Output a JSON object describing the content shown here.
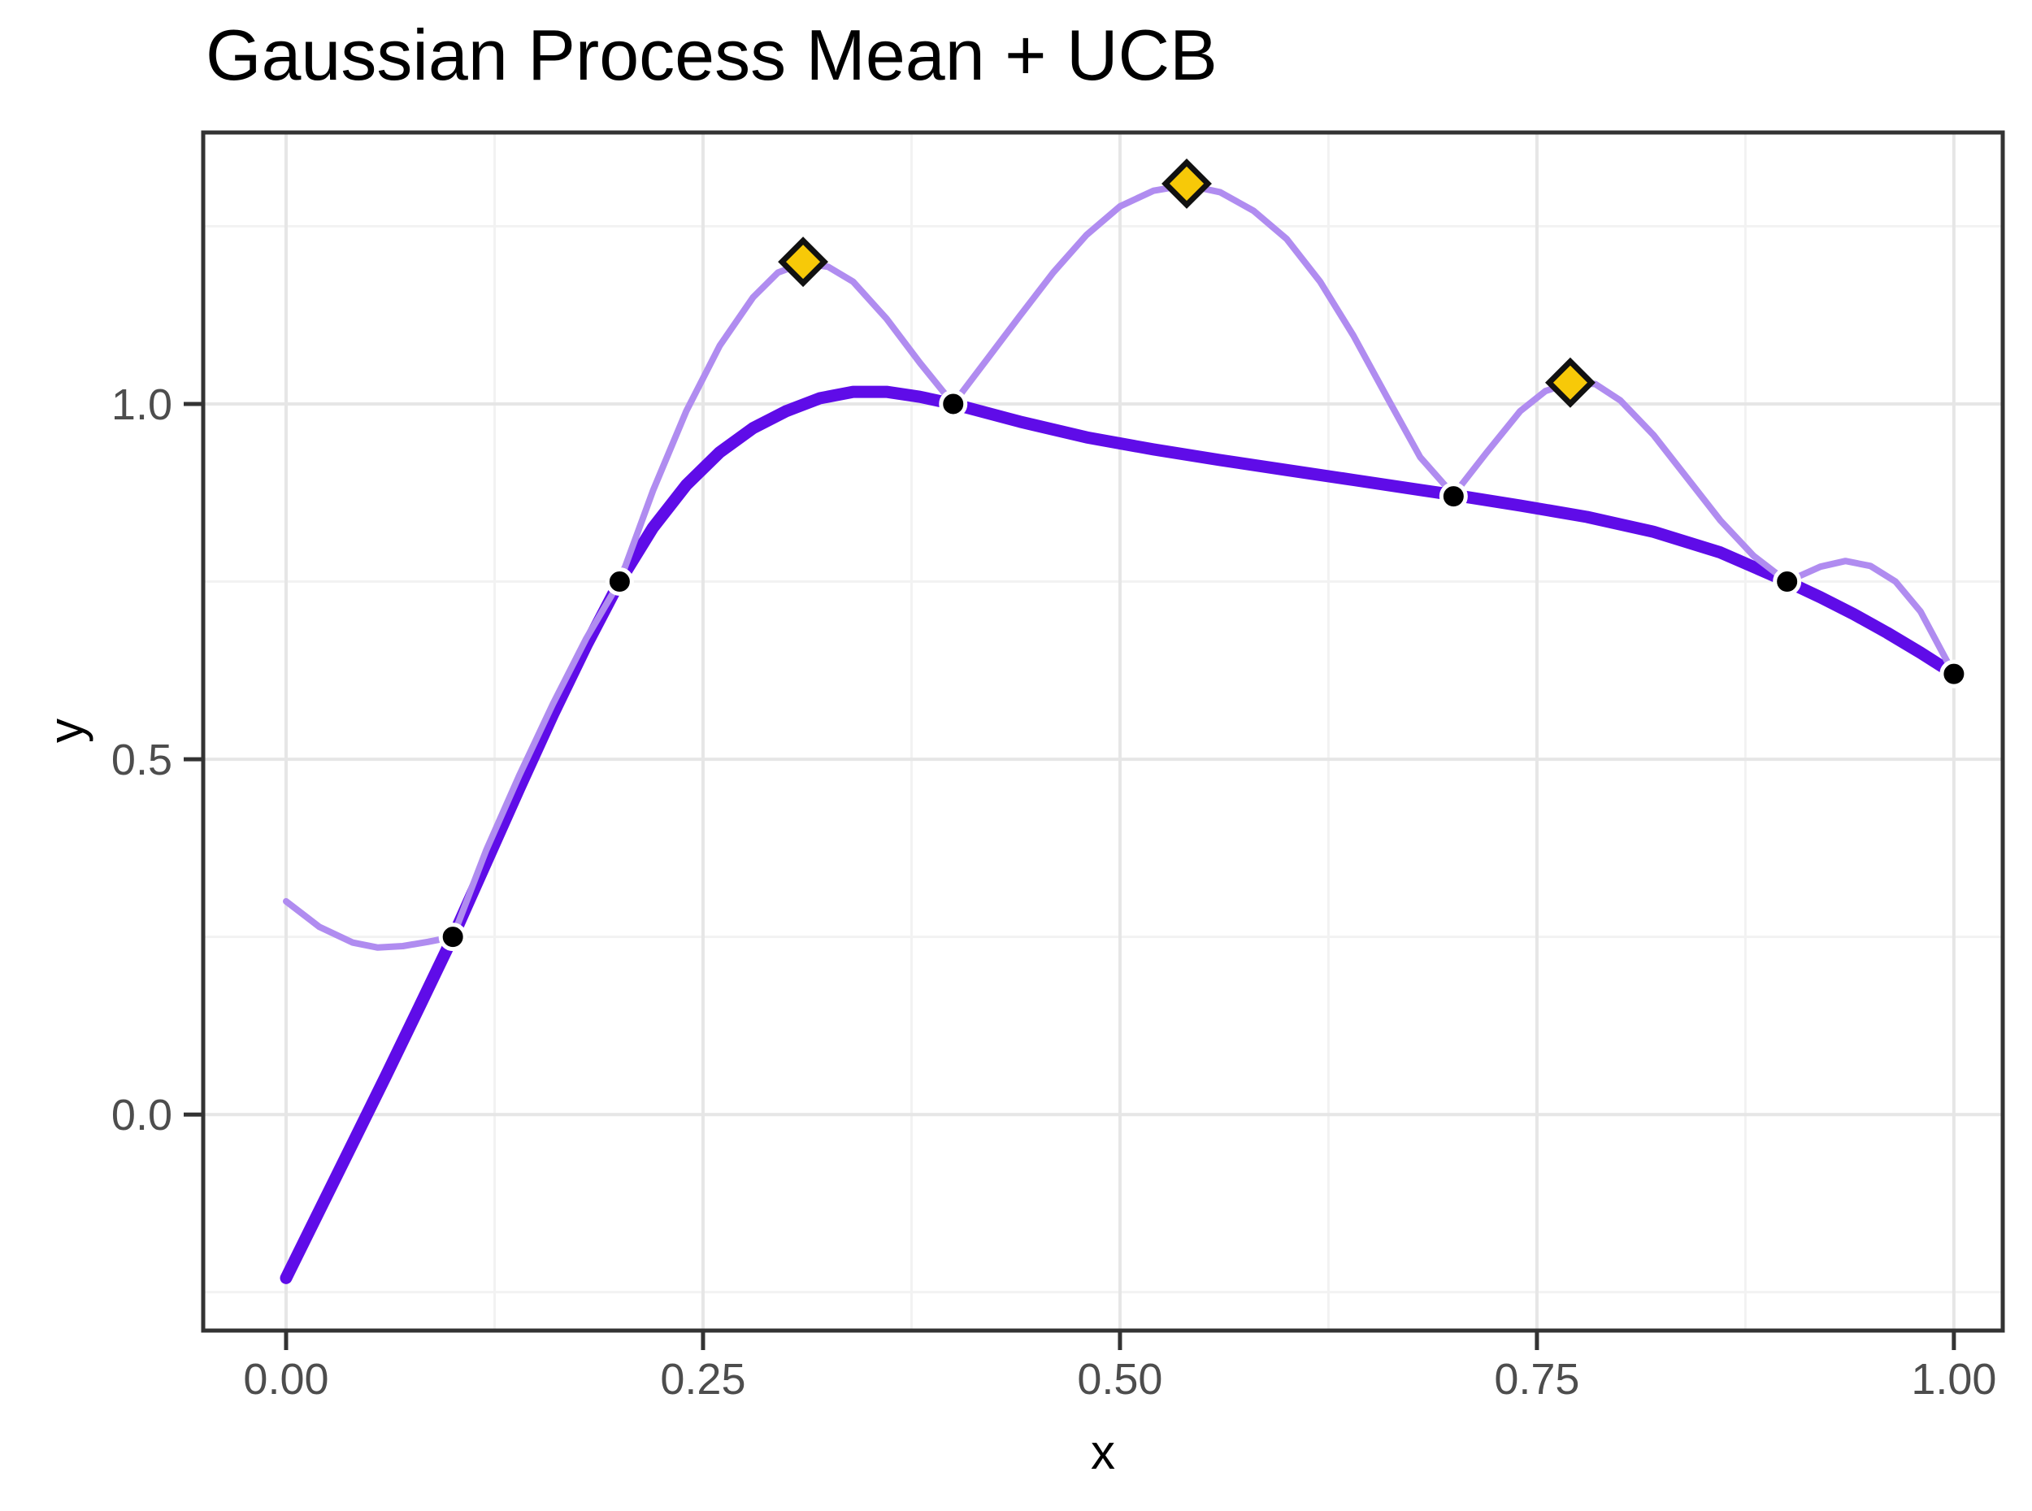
{
  "chart_data": {
    "type": "line",
    "title": "Gaussian Process Mean + UCB",
    "xlabel": "x",
    "ylabel": "y",
    "xlim": [
      -0.0497,
      1.0293
    ],
    "ylim": [
      -0.304,
      1.382
    ],
    "x_ticks": [
      0,
      0.25,
      0.5,
      0.75,
      1.0
    ],
    "x_tick_labels": [
      "0.00",
      "0.25",
      "0.50",
      "0.75",
      "1.00"
    ],
    "x_minor_ticks": [
      0.125,
      0.375,
      0.625,
      0.875
    ],
    "y_ticks": [
      0,
      0.5,
      1.0
    ],
    "y_tick_labels": [
      "0.0",
      "0.5",
      "1.0"
    ],
    "y_minor_ticks": [
      -0.25,
      0.25,
      0.75,
      1.25
    ],
    "grid": true,
    "legend": "none",
    "colors": {
      "mean_line": "#5F0CE8",
      "ucb_line": "#B08CF0",
      "observation": "#000000",
      "observation_halo": "#FFFFFF",
      "proposal_fill": "#F7C908",
      "proposal_stroke": "#111111",
      "grid_major": "#E6E6E6",
      "grid_minor": "#F2F2F2",
      "panel_border": "#333333",
      "tick": "#333333",
      "tick_label": "#4D4D4D",
      "title": "#000000"
    },
    "series": [
      {
        "name": "gp-mean",
        "label": "Gaussian Process Mean",
        "color": "#5F0CE8",
        "width": 15,
        "points": [
          [
            0.0,
            -0.23
          ],
          [
            0.02,
            -0.135
          ],
          [
            0.04,
            -0.04
          ],
          [
            0.06,
            0.055
          ],
          [
            0.08,
            0.152
          ],
          [
            0.1,
            0.25
          ],
          [
            0.12,
            0.355
          ],
          [
            0.14,
            0.46
          ],
          [
            0.16,
            0.563
          ],
          [
            0.18,
            0.66
          ],
          [
            0.2,
            0.75
          ],
          [
            0.22,
            0.826
          ],
          [
            0.24,
            0.886
          ],
          [
            0.26,
            0.932
          ],
          [
            0.28,
            0.966
          ],
          [
            0.3,
            0.99
          ],
          [
            0.32,
            1.008
          ],
          [
            0.34,
            1.017
          ],
          [
            0.36,
            1.017
          ],
          [
            0.38,
            1.01
          ],
          [
            0.4,
            1.0
          ],
          [
            0.44,
            0.975
          ],
          [
            0.48,
            0.953
          ],
          [
            0.52,
            0.936
          ],
          [
            0.56,
            0.921
          ],
          [
            0.6,
            0.907
          ],
          [
            0.64,
            0.893
          ],
          [
            0.68,
            0.879
          ],
          [
            0.7,
            0.872
          ],
          [
            0.74,
            0.857
          ],
          [
            0.78,
            0.841
          ],
          [
            0.82,
            0.82
          ],
          [
            0.86,
            0.791
          ],
          [
            0.9,
            0.75
          ],
          [
            0.92,
            0.728
          ],
          [
            0.94,
            0.704
          ],
          [
            0.96,
            0.678
          ],
          [
            0.98,
            0.65
          ],
          [
            1.0,
            0.62
          ]
        ]
      },
      {
        "name": "ucb",
        "label": "Upper Confidence Bound",
        "color": "#B08CF0",
        "width": 8,
        "points": [
          [
            0.0,
            0.3
          ],
          [
            0.02,
            0.264
          ],
          [
            0.04,
            0.242
          ],
          [
            0.055,
            0.235
          ],
          [
            0.07,
            0.237
          ],
          [
            0.085,
            0.243
          ],
          [
            0.1,
            0.25
          ],
          [
            0.12,
            0.372
          ],
          [
            0.14,
            0.478
          ],
          [
            0.16,
            0.578
          ],
          [
            0.18,
            0.67
          ],
          [
            0.2,
            0.75
          ],
          [
            0.22,
            0.878
          ],
          [
            0.24,
            0.99
          ],
          [
            0.26,
            1.082
          ],
          [
            0.28,
            1.15
          ],
          [
            0.295,
            1.185
          ],
          [
            0.31,
            1.198
          ],
          [
            0.325,
            1.193
          ],
          [
            0.34,
            1.172
          ],
          [
            0.36,
            1.12
          ],
          [
            0.38,
            1.058
          ],
          [
            0.4,
            1.0
          ],
          [
            0.42,
            1.062
          ],
          [
            0.44,
            1.124
          ],
          [
            0.46,
            1.185
          ],
          [
            0.48,
            1.238
          ],
          [
            0.5,
            1.278
          ],
          [
            0.52,
            1.3
          ],
          [
            0.54,
            1.308
          ],
          [
            0.56,
            1.298
          ],
          [
            0.58,
            1.272
          ],
          [
            0.6,
            1.232
          ],
          [
            0.62,
            1.172
          ],
          [
            0.64,
            1.096
          ],
          [
            0.66,
            1.01
          ],
          [
            0.68,
            0.925
          ],
          [
            0.7,
            0.872
          ],
          [
            0.72,
            0.932
          ],
          [
            0.74,
            0.99
          ],
          [
            0.755,
            1.018
          ],
          [
            0.77,
            1.03
          ],
          [
            0.785,
            1.028
          ],
          [
            0.8,
            1.005
          ],
          [
            0.82,
            0.956
          ],
          [
            0.84,
            0.896
          ],
          [
            0.86,
            0.836
          ],
          [
            0.88,
            0.786
          ],
          [
            0.9,
            0.75
          ],
          [
            0.92,
            0.771
          ],
          [
            0.935,
            0.779
          ],
          [
            0.95,
            0.772
          ],
          [
            0.965,
            0.75
          ],
          [
            0.98,
            0.708
          ],
          [
            1.0,
            0.62
          ]
        ]
      }
    ],
    "observations": {
      "label": "observed data points",
      "points": [
        [
          0.1,
          0.25
        ],
        [
          0.2,
          0.75
        ],
        [
          0.4,
          1.0
        ],
        [
          0.7,
          0.87
        ],
        [
          0.9,
          0.75
        ],
        [
          1.0,
          0.62
        ]
      ]
    },
    "proposals": {
      "label": "UCB local maxima (candidate points)",
      "points": [
        [
          0.31,
          1.2
        ],
        [
          0.54,
          1.31
        ],
        [
          0.77,
          1.03
        ]
      ]
    }
  }
}
